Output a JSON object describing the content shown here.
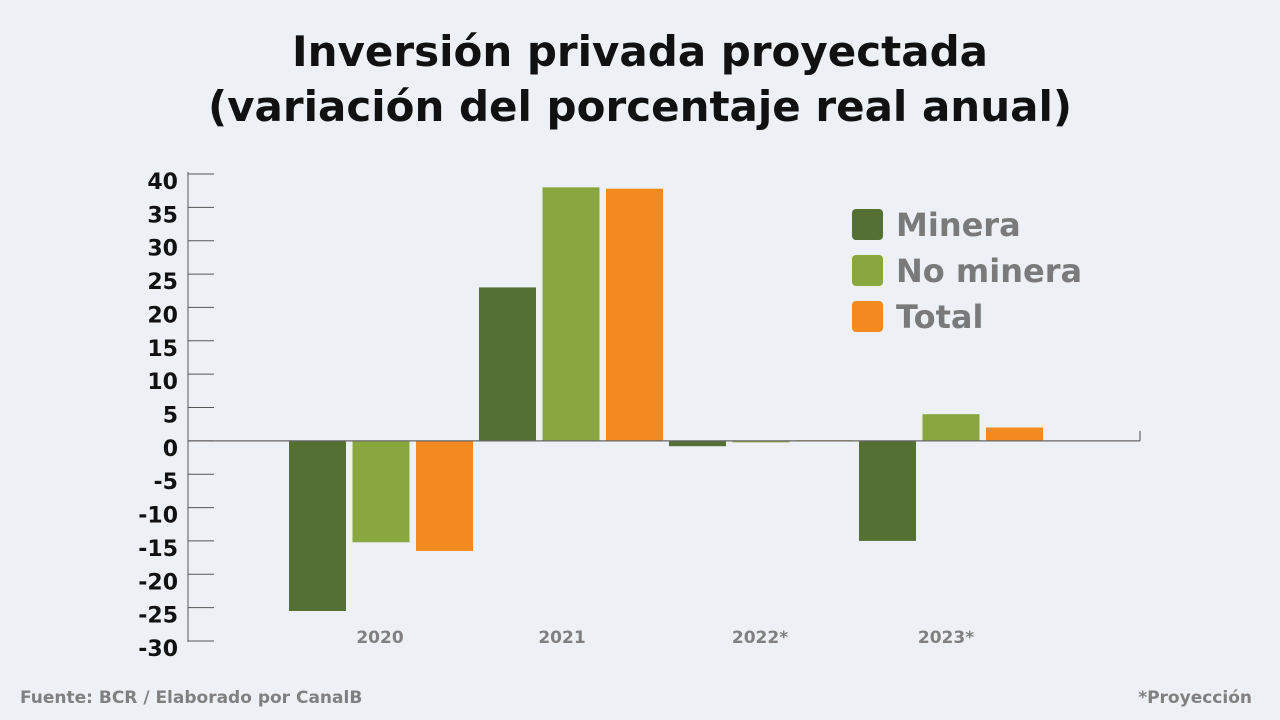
{
  "header": {
    "title_line1": "Inversión privada proyectada",
    "title_line2": "(variación del porcentaje real anual)"
  },
  "footer": {
    "source": "Fuente: BCR / Elaborado por CanalB",
    "note": "*Proyección"
  },
  "chart_data": {
    "type": "bar",
    "categories": [
      "2020",
      "2021",
      "2022*",
      "2023*"
    ],
    "series": [
      {
        "name": "Minera",
        "color": "#547033",
        "values": [
          -25.5,
          23,
          -0.8,
          -15
        ]
      },
      {
        "name": "No minera",
        "color": "#8aa63f",
        "values": [
          -15.2,
          38,
          -0.1,
          4
        ]
      },
      {
        "name": "Total",
        "color": "#f28a1f",
        "values": [
          -16.5,
          37.8,
          0,
          2
        ]
      }
    ],
    "yticks": [
      "40",
      "35",
      "30",
      "25",
      "20",
      "15",
      "10",
      "5",
      "0",
      "-5",
      "-10",
      "-15",
      "-20",
      "-25",
      "-30"
    ],
    "ylim": [
      -30,
      40
    ],
    "xlabel": "",
    "ylabel": "",
    "legend_position": "top-right",
    "grid": false
  }
}
